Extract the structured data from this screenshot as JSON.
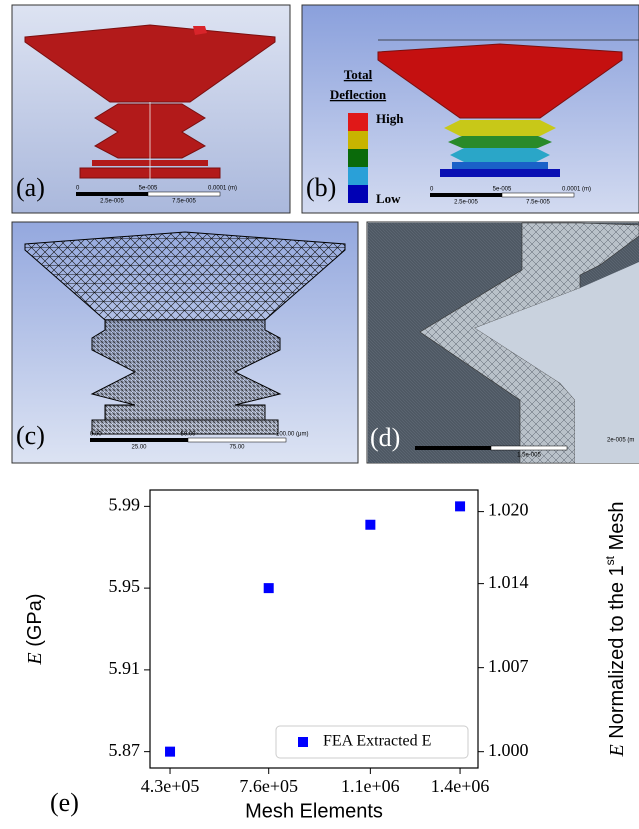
{
  "panels": {
    "a": {
      "label": "(a)",
      "scale": [
        "0",
        "5e-005",
        "0.0001 (m)",
        "2.5e-005",
        "7.5e-005"
      ]
    },
    "b": {
      "label": "(b)",
      "legend_title": [
        "Total",
        "Deflection"
      ],
      "high": "High",
      "low": "Low",
      "scale": [
        "0",
        "5e-005",
        "0.0001 (m)",
        "2.5e-005",
        "7.5e-005"
      ]
    },
    "c": {
      "label": "(c)",
      "scale": [
        "0.00",
        "50.00",
        "100.00 (μm)",
        "25.00",
        "75.00"
      ]
    },
    "d": {
      "label": "(d)",
      "scale": [
        "2e-005 (m",
        "1.5e-005"
      ]
    },
    "e": {
      "label": "(e)"
    }
  },
  "chart_data": {
    "type": "scatter",
    "x_label": "Mesh Elements",
    "y_label_parts": [
      "E",
      " (GPa)"
    ],
    "y2_label_parts": [
      "E",
      " Normalized to the 1",
      "st",
      " Mesh"
    ],
    "x": [
      430000,
      760000,
      1100000,
      1400000
    ],
    "series": [
      {
        "name": "FEA Extracted E",
        "color": "#0000ff",
        "values": [
          5.87,
          5.95,
          5.981,
          5.99
        ]
      }
    ],
    "xlim": [
      363000,
      1460000
    ],
    "xticks": [
      {
        "value": 430000,
        "label": "4.3e+05"
      },
      {
        "value": 760000,
        "label": "7.6e+05"
      },
      {
        "value": 1100000,
        "label": "1.1e+06"
      },
      {
        "value": 1400000,
        "label": "1.4e+06"
      }
    ],
    "ylim": [
      5.862,
      5.998
    ],
    "yticks": [
      5.87,
      5.91,
      5.95,
      5.99
    ],
    "y2lim": [
      0.99864,
      1.0218
    ],
    "y2ticks": [
      {
        "value": 1,
        "label": "1.000"
      },
      {
        "value": 1.007,
        "label": "1.007"
      },
      {
        "value": 1.014,
        "label": "1.014"
      },
      {
        "value": 1.02,
        "label": "1.020"
      }
    ],
    "legend": "lower right"
  }
}
